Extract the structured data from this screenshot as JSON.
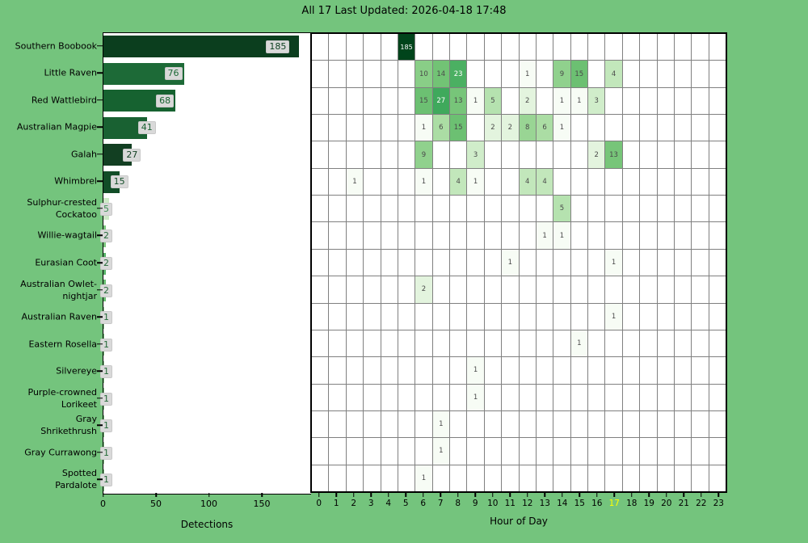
{
  "title": "All 17 Last Updated: 2026-04-18 17:48",
  "species_total": "17",
  "last_updated": "2026-04-18 17:48",
  "colors": {
    "background": "#74c47d",
    "plot_background": "#ffffff",
    "gridline": "#808080",
    "value_label_box": "#d9d9d9",
    "current_hour_tick": "#ffff00",
    "heatmap_dark": "#00441b"
  },
  "chart_data": [
    {
      "type": "bar",
      "orientation": "horizontal",
      "xlabel": "Detections",
      "xticks": [
        0,
        50,
        100,
        150
      ],
      "xlim": [
        0,
        196
      ],
      "categories": [
        "Southern Boobook",
        "Little Raven",
        "Red Wattlebird",
        "Australian Magpie",
        "Galah",
        "Whimbrel",
        "Sulphur-crested Cockatoo",
        "Willie-wagtail",
        "Eurasian Coot",
        "Australian Owlet-nightjar",
        "Australian Raven",
        "Eastern Rosella",
        "Silvereye",
        "Purple-crowned Lorikeet",
        "Gray Shrikethrush",
        "Gray Currawong",
        "Spotted Pardalote"
      ],
      "categories_wrapped": [
        [
          "Southern Boobook"
        ],
        [
          "Little Raven"
        ],
        [
          "Red Wattlebird"
        ],
        [
          "Australian Magpie"
        ],
        [
          "Galah"
        ],
        [
          "Whimbrel"
        ],
        [
          "Sulphur-crested",
          "Cockatoo"
        ],
        [
          "Willie-wagtail"
        ],
        [
          "Eurasian Coot"
        ],
        [
          "Australian Owlet-",
          "nightjar"
        ],
        [
          "Australian Raven"
        ],
        [
          "Eastern Rosella"
        ],
        [
          "Silvereye"
        ],
        [
          "Purple-crowned",
          "Lorikeet"
        ],
        [
          "Gray",
          "Shrikethrush"
        ],
        [
          "Gray Currawong"
        ],
        [
          "Spotted",
          "Pardalote"
        ]
      ],
      "values": [
        185,
        76,
        68,
        41,
        27,
        15,
        5,
        2,
        2,
        2,
        1,
        1,
        1,
        1,
        1,
        1,
        1
      ],
      "bar_colors": [
        "#0b3e1e",
        "#1d6a37",
        "#166230",
        "#196132",
        "#123f22",
        "#114d27",
        "#cde9c6",
        "#7cc67e",
        "#58b269",
        "#6abd72",
        "#8fcf91",
        "#79c47d",
        "#8fcf91",
        "#86ca88",
        "#79c47d",
        "#8fcf91",
        "#86ca88"
      ],
      "label_colors": [
        "#0b3e1e",
        "#1d6a37",
        "#166230",
        "#196132",
        "#123f22",
        "#114d27",
        "#3d9152",
        "#256b39",
        "#256b39",
        "#256b39",
        "#256b39",
        "#256b39",
        "#256b39",
        "#256b39",
        "#256b39",
        "#256b39",
        "#256b39"
      ]
    },
    {
      "type": "heatmap",
      "xlabel": "Hour of Day",
      "hours": [
        0,
        1,
        2,
        3,
        4,
        5,
        6,
        7,
        8,
        9,
        10,
        11,
        12,
        13,
        14,
        15,
        16,
        17,
        18,
        19,
        20,
        21,
        22,
        23
      ],
      "highlight_hour": 17,
      "colormap": "Greens",
      "scale": "log",
      "vmax": 185,
      "categories": [
        "Southern Boobook",
        "Little Raven",
        "Red Wattlebird",
        "Australian Magpie",
        "Galah",
        "Whimbrel",
        "Sulphur-crested Cockatoo",
        "Willie-wagtail",
        "Eurasian Coot",
        "Australian Owlet-nightjar",
        "Australian Raven",
        "Eastern Rosella",
        "Silvereye",
        "Purple-crowned Lorikeet",
        "Gray Shrikethrush",
        "Gray Currawong",
        "Spotted Pardalote"
      ],
      "rows": [
        {
          "5": 185
        },
        {
          "6": 10,
          "7": 14,
          "8": 23,
          "12": 1,
          "14": 9,
          "15": 15,
          "17": 4
        },
        {
          "6": 15,
          "7": 27,
          "8": 13,
          "9": 1,
          "10": 5,
          "12": 2,
          "14": 1,
          "15": 1,
          "16": 3
        },
        {
          "6": 1,
          "7": 6,
          "8": 15,
          "10": 2,
          "11": 2,
          "12": 8,
          "13": 6,
          "14": 1
        },
        {
          "6": 9,
          "9": 3,
          "16": 2,
          "17": 13
        },
        {
          "2": 1,
          "6": 1,
          "8": 4,
          "9": 1,
          "12": 4,
          "13": 4
        },
        {
          "14": 5
        },
        {
          "13": 1,
          "14": 1
        },
        {
          "11": 1,
          "17": 1
        },
        {
          "6": 2
        },
        {
          "17": 1
        },
        {
          "15": 1
        },
        {
          "9": 1
        },
        {
          "9": 1
        },
        {
          "7": 1
        },
        {
          "7": 1
        },
        {
          "6": 1
        }
      ]
    }
  ]
}
